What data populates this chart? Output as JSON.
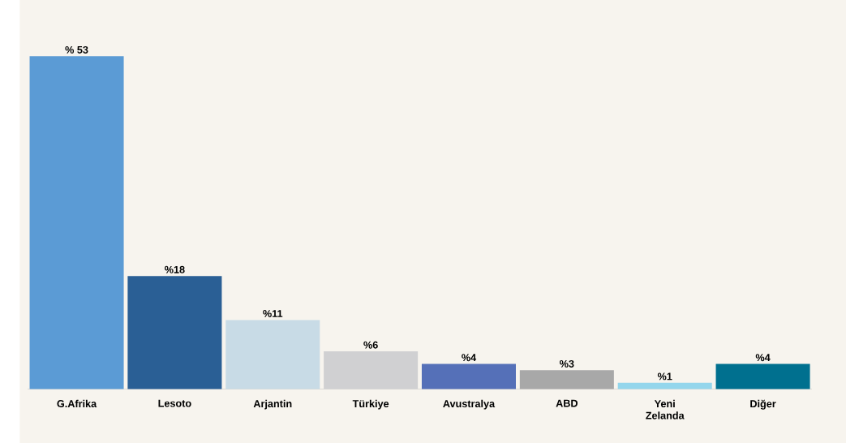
{
  "chart_data": {
    "type": "bar",
    "categories": [
      "G.Afrika",
      "Lesoto",
      "Arjantin",
      "Türkiye",
      "Avustralya",
      "ABD",
      "Yeni Zelanda",
      "Diğer"
    ],
    "values": [
      53,
      18,
      11,
      6,
      4,
      3,
      1,
      4
    ],
    "value_labels": [
      "% 53",
      "%18",
      "%11",
      "%6",
      "%4",
      "%3",
      "%1",
      "%4"
    ],
    "colors": [
      "#5b9bd5",
      "#2a5f95",
      "#c8dbe6",
      "#d0d0d2",
      "#5570b8",
      "#a8a8a8",
      "#94d6ec",
      "#00708f"
    ]
  }
}
